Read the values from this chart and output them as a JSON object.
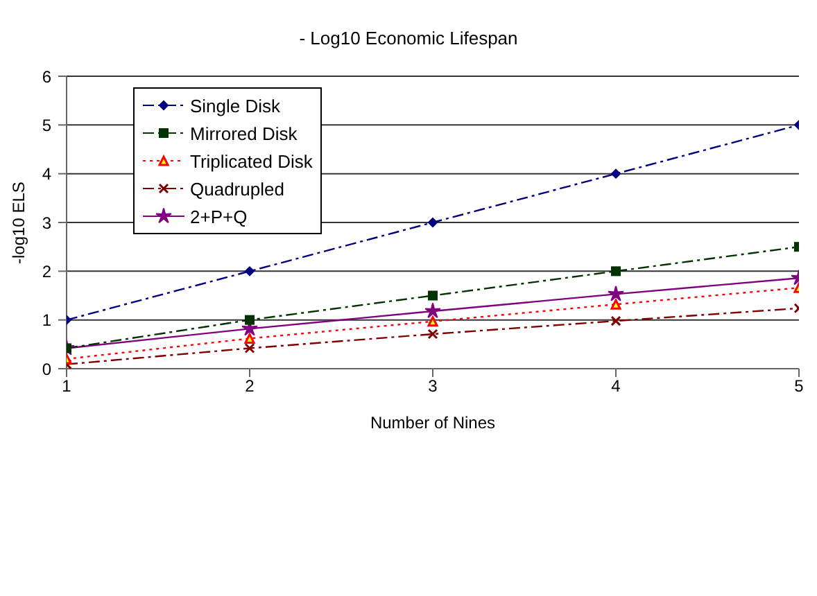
{
  "chart_data": {
    "type": "line",
    "title": "- Log10 Economic Lifespan",
    "xlabel": "Number of Nines",
    "ylabel": "-log10 ELS",
    "x": [
      1,
      2,
      3,
      4,
      5
    ],
    "xlim": [
      1,
      5
    ],
    "xticks": [
      1,
      2,
      3,
      4,
      5
    ],
    "ylim": [
      0,
      6
    ],
    "yticks": [
      0,
      1,
      2,
      3,
      4,
      5,
      6
    ],
    "grid": "y",
    "legend": "top left",
    "series": [
      {
        "name": "Single Disk",
        "color": "#000080",
        "values": [
          1,
          2,
          3,
          4,
          5
        ],
        "marker": "diamond",
        "line_style": "dashed"
      },
      {
        "name": "Mirrored Disk",
        "color": "#003300",
        "values": [
          0.42,
          1,
          1.5,
          2,
          2.5
        ],
        "marker": "square",
        "line_style": "dashed"
      },
      {
        "name": "Triplicated Disk",
        "color": "#ff0000",
        "values": [
          0.2,
          0.62,
          0.97,
          1.32,
          1.66
        ],
        "marker": "triangle",
        "line_style": "dotted"
      },
      {
        "name": "Quadrupled",
        "color": "#800000",
        "values": [
          0.09,
          0.42,
          0.71,
          0.98,
          1.24
        ],
        "marker": "cross",
        "line_style": "dashed"
      },
      {
        "name": "2+P+Q",
        "color": "#800080",
        "values": [
          0.42,
          0.82,
          1.18,
          1.53,
          1.86
        ],
        "marker": "star",
        "line_style": "solid"
      }
    ]
  }
}
